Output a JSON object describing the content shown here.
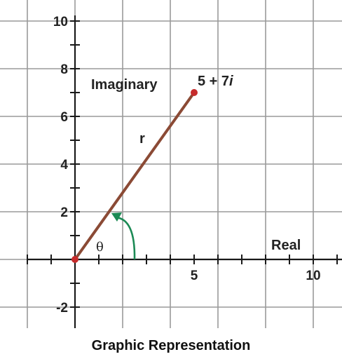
{
  "caption": "Graphic Representation",
  "axes": {
    "real_label": "Real",
    "imaginary_label": "Imaginary",
    "x_range": [
      -2,
      11
    ],
    "y_range": [
      -3,
      10.5
    ],
    "x_tick_labels": [
      {
        "value": 5,
        "text": "5"
      },
      {
        "value": 10,
        "text": "10"
      }
    ],
    "y_tick_labels": [
      {
        "value": 10,
        "text": "10"
      },
      {
        "value": 8,
        "text": "8"
      },
      {
        "value": 6,
        "text": "6"
      },
      {
        "value": 4,
        "text": "4"
      },
      {
        "value": 2,
        "text": "2"
      },
      {
        "value": -2,
        "text": "-2"
      }
    ]
  },
  "vector": {
    "from": [
      0,
      0
    ],
    "to": [
      5,
      7
    ],
    "length_label": "r",
    "angle_label": "θ",
    "point_label_prefix": "5 + 7",
    "point_label_italic": "i"
  },
  "colors": {
    "grid": "#9a9a9a",
    "axis": "#1a1a1a",
    "vector": "#8b4a35",
    "point": "#c62b2b",
    "origin": "#c62b2b",
    "angle_arrow": "#1c8a55"
  }
}
